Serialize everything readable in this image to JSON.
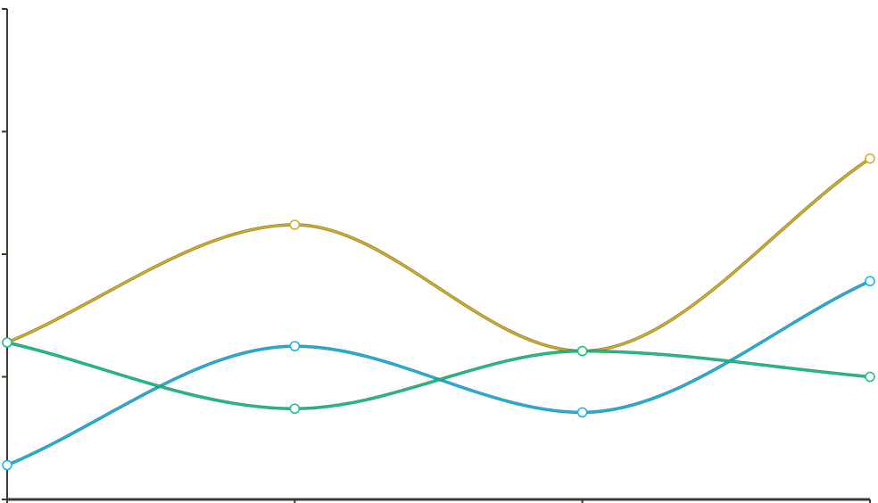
{
  "chart_data": {
    "type": "line",
    "curve": "smooth",
    "x": [
      0,
      1,
      2,
      3
    ],
    "ylim": [
      0,
      4
    ],
    "yticks": [
      0,
      1,
      2,
      3,
      4
    ],
    "grid": false,
    "legend": "none",
    "title": "",
    "xlabel": "",
    "ylabel": "",
    "axis_color": "#3d3a2e",
    "background": "#ffffff",
    "series": [
      {
        "key": "gold",
        "values": [
          1.28,
          2.24,
          1.21,
          2.78
        ],
        "color": "#d4ae1e",
        "edge_color": "#7a6a20"
      },
      {
        "key": "blue",
        "values": [
          0.28,
          1.25,
          0.71,
          1.78
        ],
        "color": "#13b6e6",
        "edge_color": "#2a6f86"
      },
      {
        "key": "green",
        "values": [
          1.28,
          0.74,
          1.21,
          1.0
        ],
        "color": "#12c38a",
        "edge_color": "#2a7a55"
      }
    ]
  }
}
